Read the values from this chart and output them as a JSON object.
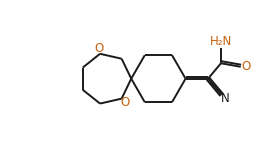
{
  "bg_color": "#ffffff",
  "line_color": "#1a1a1a",
  "text_color": "#1a1a1a",
  "line_width": 1.4,
  "font_size": 8.5,
  "figsize": [
    2.79,
    1.55
  ],
  "dpi": 100,
  "xlim": [
    0,
    10
  ],
  "ylim": [
    0,
    6.5
  ],
  "o_color": "#c8600a",
  "n_color": "#1a1a1a",
  "h2n_color": "#c8600a"
}
